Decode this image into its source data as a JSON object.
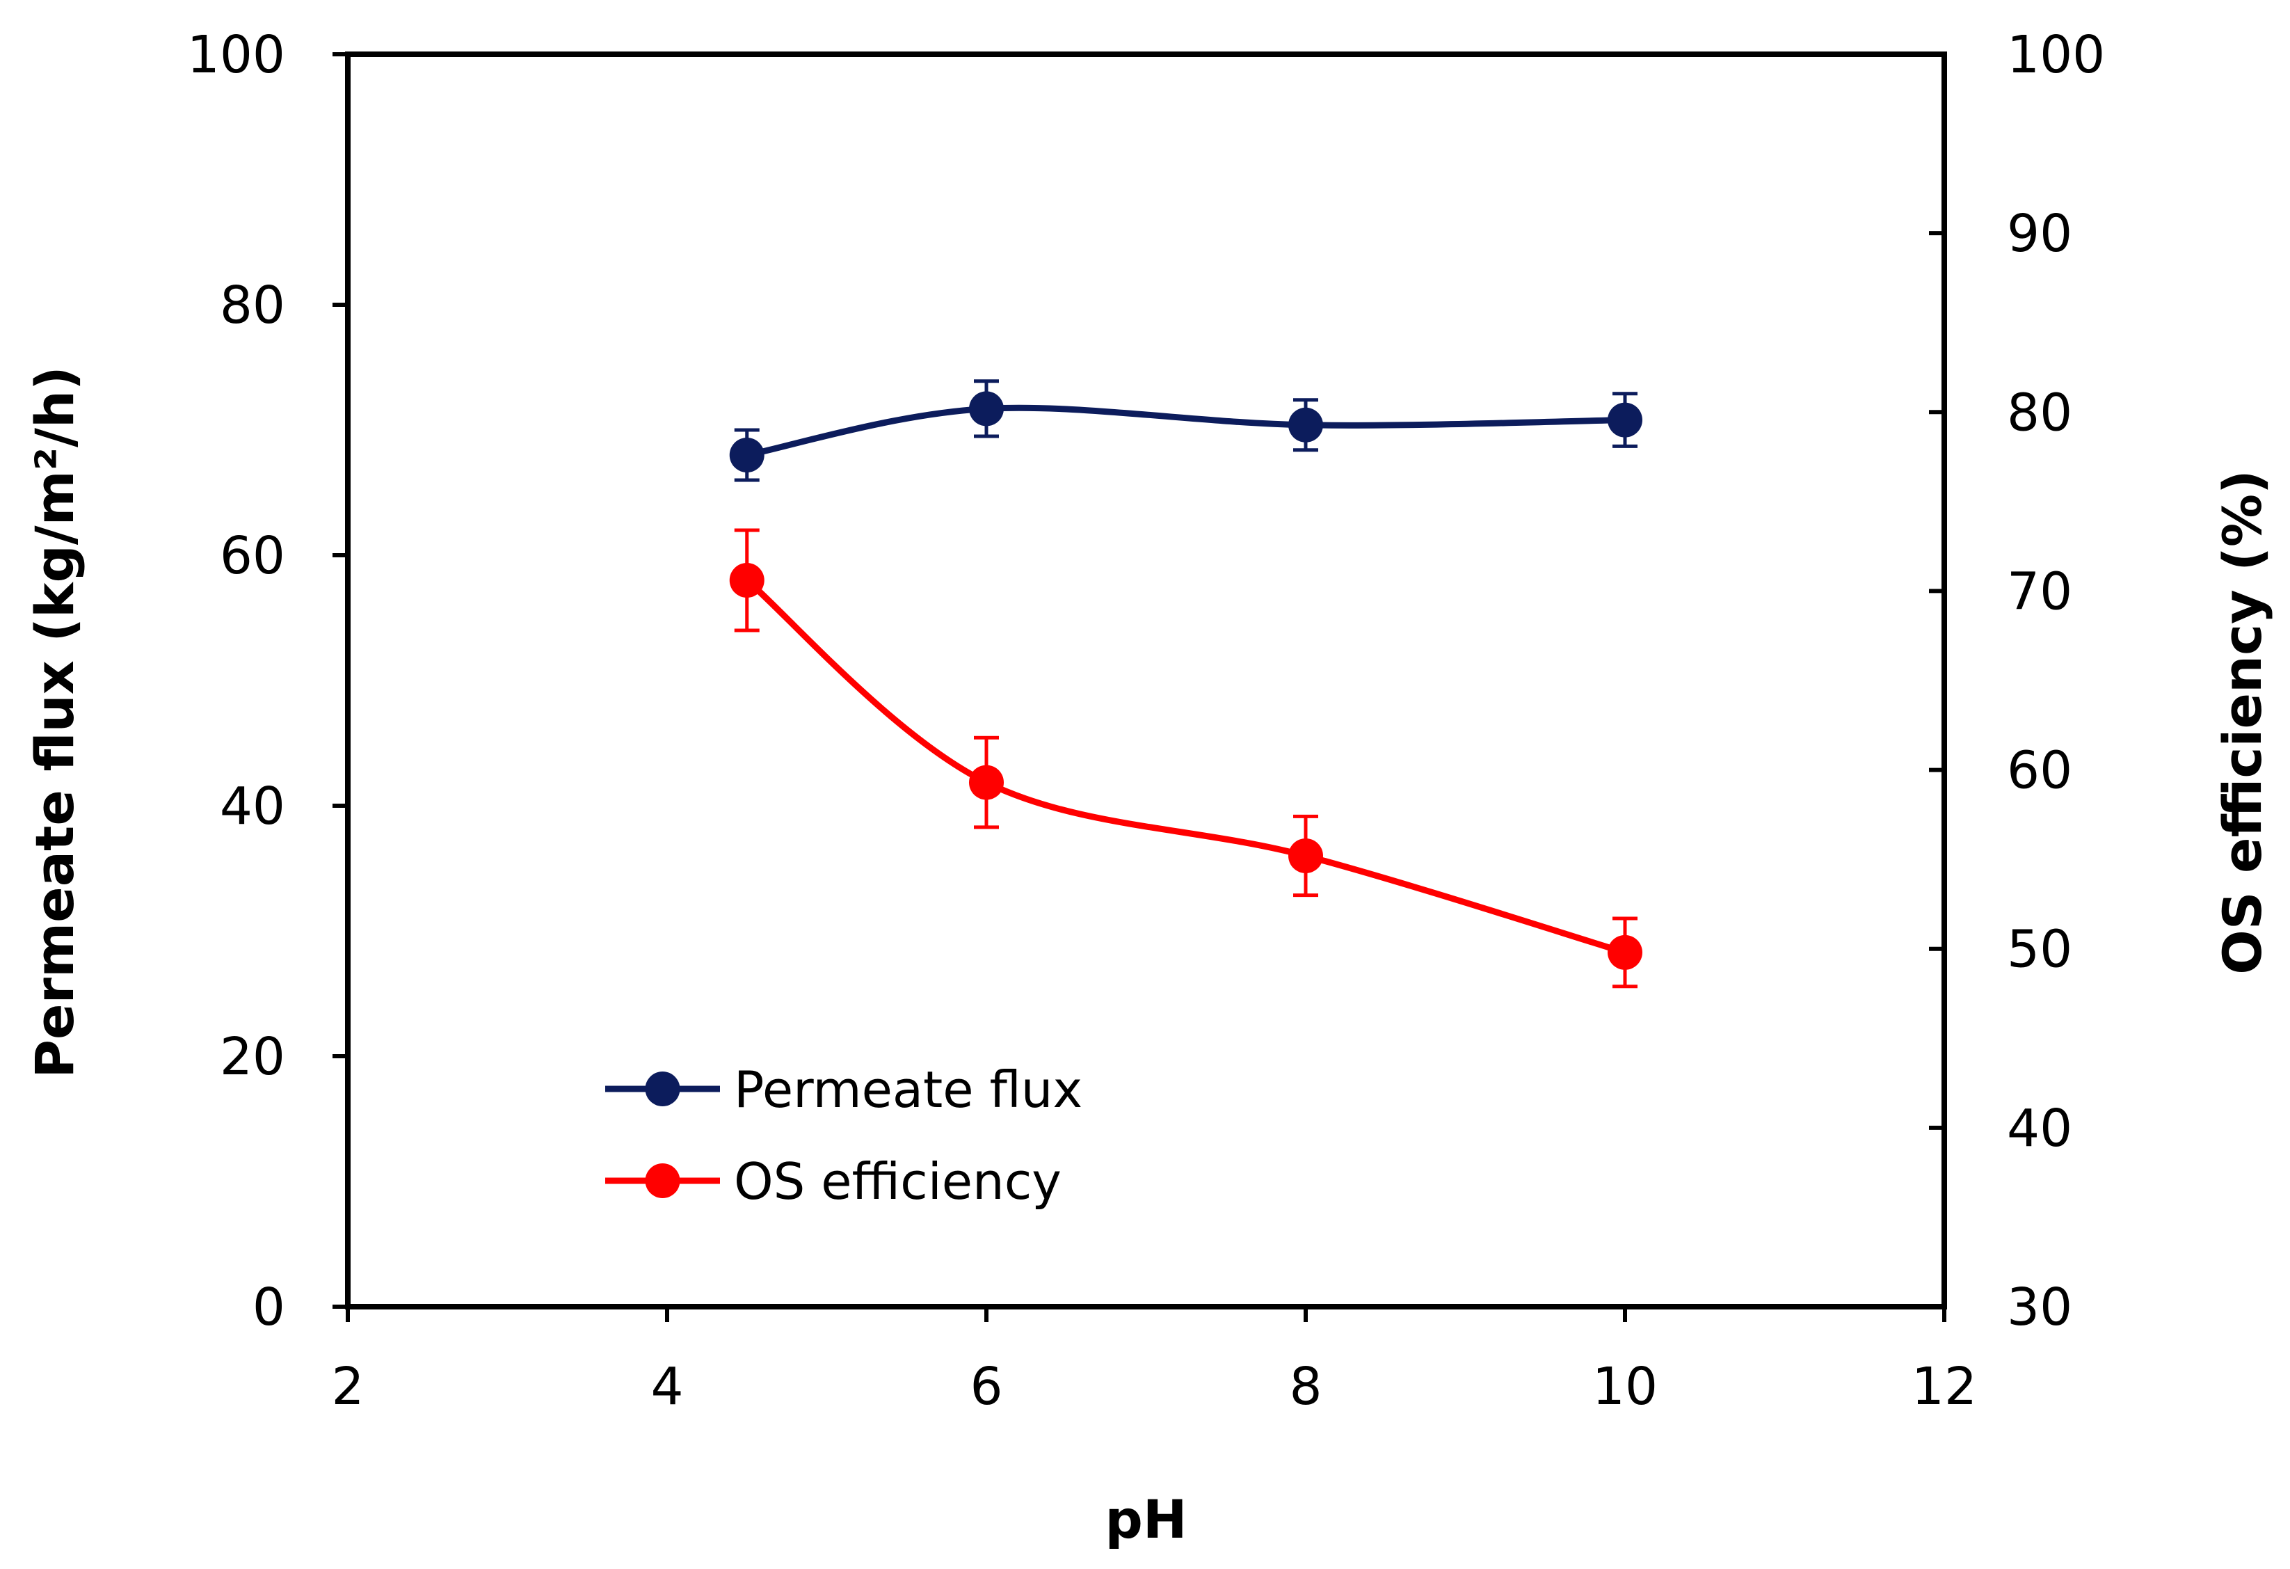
{
  "chart_data": {
    "type": "line",
    "title": "",
    "xlabel": "pH",
    "ylabel": "Permeate flux (kg/m²/h)",
    "y2label": "OS efficiency (%)",
    "xlim": [
      2,
      12
    ],
    "ylim": [
      0,
      100
    ],
    "y2lim": [
      30,
      100
    ],
    "x_ticks": [
      2,
      4,
      6,
      8,
      10,
      12
    ],
    "y_ticks": [
      0,
      20,
      40,
      60,
      80,
      100
    ],
    "y2_ticks": [
      30,
      40,
      50,
      60,
      70,
      80,
      90,
      100
    ],
    "grid": false,
    "legend_position": "bottom-left",
    "series": [
      {
        "name": "Permeate flux",
        "axis": "left",
        "color": "#0c1c5c",
        "x": [
          4.5,
          6,
          8,
          10
        ],
        "y": [
          68.0,
          71.7,
          70.4,
          70.8
        ],
        "error": [
          2.0,
          2.2,
          2.0,
          2.1
        ]
      },
      {
        "name": "OS efficiency",
        "axis": "right",
        "color": "#ff0000",
        "x": [
          4.5,
          6,
          8,
          10
        ],
        "y": [
          70.6,
          59.3,
          55.2,
          49.8
        ],
        "error": [
          2.8,
          2.5,
          2.2,
          1.9
        ]
      }
    ]
  }
}
